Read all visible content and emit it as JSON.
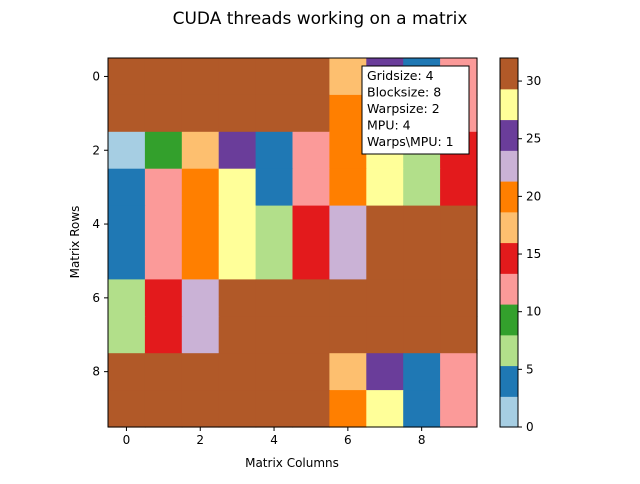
{
  "chart_data": {
    "type": "heatmap",
    "title": "CUDA threads working on a matrix",
    "xlabel": "Matrix Columns",
    "ylabel": "Matrix Rows",
    "x_ticks": [
      "0",
      "2",
      "4",
      "6",
      "8"
    ],
    "y_ticks": [
      "0",
      "2",
      "4",
      "6",
      "8"
    ],
    "rows": 10,
    "cols": 10,
    "values": [
      [
        31,
        31,
        31,
        31,
        31,
        31,
        18,
        25,
        5,
        12
      ],
      [
        31,
        31,
        31,
        31,
        31,
        31,
        20,
        25,
        5,
        12
      ],
      [
        1,
        9,
        18,
        25,
        5,
        12,
        20,
        28,
        7,
        14
      ],
      [
        4,
        12,
        20,
        28,
        5,
        12,
        20,
        28,
        7,
        14
      ],
      [
        4,
        12,
        20,
        28,
        7,
        14,
        23,
        31,
        31,
        31
      ],
      [
        4,
        12,
        20,
        28,
        7,
        14,
        23,
        31,
        31,
        31
      ],
      [
        7,
        14,
        23,
        31,
        31,
        31,
        31,
        31,
        31,
        31
      ],
      [
        7,
        14,
        23,
        31,
        31,
        31,
        31,
        31,
        31,
        31
      ],
      [
        31,
        31,
        31,
        31,
        31,
        31,
        18,
        25,
        5,
        12
      ],
      [
        31,
        31,
        31,
        31,
        31,
        31,
        20,
        28,
        5,
        12
      ]
    ],
    "colormap": "Paired",
    "vmin": 0,
    "vmax": 32,
    "colorbar_ticks": [
      "0",
      "5",
      "10",
      "15",
      "20",
      "25",
      "30"
    ],
    "colorbar_tick_values": [
      0,
      5,
      10,
      15,
      20,
      25,
      30
    ],
    "palette": [
      "#a6cee3",
      "#1f78b4",
      "#b2df8a",
      "#33a02c",
      "#fb9a99",
      "#e31a1c",
      "#fdbf6f",
      "#ff7f00",
      "#cab2d6",
      "#6a3d9a",
      "#ffff99",
      "#b15928"
    ],
    "info_box": [
      "Gridsize: 4",
      "Blocksize: 8",
      "Warpsize: 2",
      "MPU: 4",
      "Warps\\MPU: 1"
    ]
  }
}
